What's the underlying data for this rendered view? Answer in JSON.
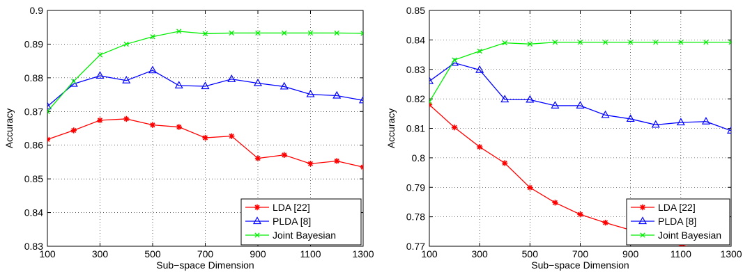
{
  "colors": {
    "lda": "#ff0000",
    "plda": "#0000ff",
    "joint": "#00ee00",
    "axis": "#000000",
    "grid": "#000000"
  },
  "chart_data": [
    {
      "type": "line",
      "xlabel": "Sub−space Dimension",
      "ylabel": "Accuracy",
      "xlim": [
        100,
        1300
      ],
      "ylim": [
        0.83,
        0.9
      ],
      "xticks": [
        100,
        300,
        500,
        700,
        900,
        1100,
        1300
      ],
      "yticks": [
        0.83,
        0.84,
        0.85,
        0.86,
        0.87,
        0.88,
        0.89,
        0.9
      ],
      "ytick_labels": [
        "0.83",
        "0.84",
        "0.85",
        "0.86",
        "0.87",
        "0.88",
        "0.89",
        "0.9"
      ],
      "grid": true,
      "legend_position": "bottom-right",
      "x": [
        100,
        200,
        300,
        400,
        500,
        600,
        700,
        800,
        900,
        1000,
        1100,
        1200,
        1300
      ],
      "series": [
        {
          "name": "LDA [22]",
          "marker": "star",
          "color": "#ff0000",
          "values": [
            0.8617,
            0.8644,
            0.8674,
            0.8678,
            0.866,
            0.8654,
            0.8622,
            0.8627,
            0.8561,
            0.8571,
            0.8545,
            0.8553,
            0.8535
          ]
        },
        {
          "name": "PLDA [8]",
          "marker": "triangle",
          "color": "#0000ff",
          "values": [
            0.8715,
            0.8782,
            0.8806,
            0.8792,
            0.8822,
            0.8777,
            0.8775,
            0.8796,
            0.8784,
            0.8774,
            0.8751,
            0.8747,
            0.8733
          ]
        },
        {
          "name": "Joint Bayesian",
          "marker": "x",
          "color": "#00ee00",
          "values": [
            0.87,
            0.879,
            0.8868,
            0.89,
            0.8922,
            0.8938,
            0.8931,
            0.8933,
            0.8933,
            0.8933,
            0.8933,
            0.8933,
            0.8932
          ]
        }
      ]
    },
    {
      "type": "line",
      "xlabel": "Sub−space Dimension",
      "ylabel": "Accuracy",
      "xlim": [
        100,
        1300
      ],
      "ylim": [
        0.77,
        0.85
      ],
      "xticks": [
        100,
        300,
        500,
        700,
        900,
        1100,
        1300
      ],
      "yticks": [
        0.77,
        0.78,
        0.79,
        0.8,
        0.81,
        0.82,
        0.83,
        0.84,
        0.85
      ],
      "ytick_labels": [
        "0.77",
        "0.78",
        "0.79",
        "0.8",
        "0.81",
        "0.82",
        "0.83",
        "0.84",
        "0.85"
      ],
      "grid": true,
      "legend_position": "bottom-right",
      "x": [
        100,
        200,
        300,
        400,
        500,
        600,
        700,
        800,
        900,
        1000,
        1100,
        1200,
        1300
      ],
      "series": [
        {
          "name": "LDA [22]",
          "marker": "star",
          "color": "#ff0000",
          "values": [
            0.818,
            0.8103,
            0.8037,
            0.7982,
            0.7899,
            0.7848,
            0.7808,
            0.778,
            0.7755,
            0.773,
            0.7705,
            0.768,
            0.7655
          ]
        },
        {
          "name": "PLDA [8]",
          "marker": "triangle",
          "color": "#0000ff",
          "values": [
            0.826,
            0.8322,
            0.8298,
            0.8198,
            0.8197,
            0.8177,
            0.8177,
            0.8145,
            0.8132,
            0.8112,
            0.812,
            0.8123,
            0.8092
          ]
        },
        {
          "name": "Joint Bayesian",
          "marker": "x",
          "color": "#00ee00",
          "values": [
            0.819,
            0.8332,
            0.8362,
            0.839,
            0.8386,
            0.8392,
            0.8392,
            0.8392,
            0.8392,
            0.8392,
            0.8392,
            0.8392,
            0.8392
          ]
        }
      ]
    }
  ]
}
